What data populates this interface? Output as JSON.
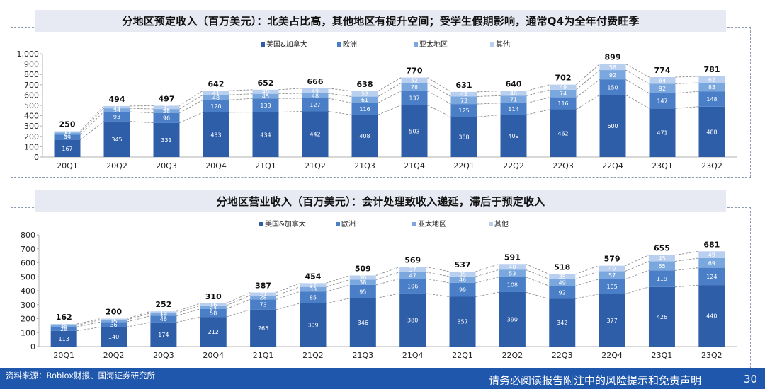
{
  "footer": {
    "source": "资料来源：Roblox财报、国海证券研究所",
    "disclaimer": "请务必阅读报告附注中的风险提示和免责声明",
    "page_number": "30"
  },
  "colors": {
    "series": [
      "#2e5ea8",
      "#4a7ec7",
      "#7aa7dd",
      "#b9cff0"
    ],
    "connector": "#8c8c8c",
    "footer": "#1f57ad"
  },
  "chart_data": [
    {
      "type": "bar",
      "stacked": true,
      "title": "分地区预定收入（百万美元）：北美占比高，其他地区有提升空间；受学生假期影响，通常Q4为全年付费旺季",
      "xlabel": "",
      "ylabel": "",
      "ylim": [
        0,
        1000
      ],
      "yticks": [
        "0",
        "100",
        "200",
        "300",
        "400",
        "500",
        "600",
        "700",
        "800",
        "900",
        "1,000"
      ],
      "legend_position": "top-center",
      "categories": [
        "20Q1",
        "20Q2",
        "20Q3",
        "20Q4",
        "21Q1",
        "21Q2",
        "21Q3",
        "21Q4",
        "22Q1",
        "22Q2",
        "22Q3",
        "22Q4",
        "23Q1",
        "23Q2"
      ],
      "series": [
        {
          "name": "美国&加拿大",
          "values": [
            167,
            345,
            331,
            433,
            434,
            442,
            408,
            503,
            388,
            409,
            462,
            600,
            471,
            488
          ]
        },
        {
          "name": "欧洲",
          "values": [
            49,
            93,
            96,
            120,
            133,
            127,
            116,
            137,
            125,
            114,
            116,
            150,
            147,
            148
          ]
        },
        {
          "name": "亚太地区",
          "values": [
            21,
            34,
            38,
            48,
            45,
            48,
            61,
            78,
            73,
            71,
            74,
            92,
            92,
            83
          ]
        },
        {
          "name": "其他",
          "values": [
            13,
            22,
            32,
            41,
            40,
            49,
            53,
            52,
            45,
            46,
            49,
            58,
            64,
            62
          ]
        }
      ],
      "totals": [
        250,
        494,
        497,
        642,
        652,
        666,
        638,
        770,
        631,
        640,
        702,
        899,
        774,
        781
      ]
    },
    {
      "type": "bar",
      "stacked": true,
      "title": "分地区营业收入（百万美元）：会计处理致收入递延，滞后于预定收入",
      "xlabel": "",
      "ylabel": "",
      "ylim": [
        0,
        800
      ],
      "yticks": [
        "0",
        "100",
        "200",
        "300",
        "400",
        "500",
        "600",
        "700",
        "800"
      ],
      "legend_position": "top-center",
      "categories": [
        "20Q1",
        "20Q2",
        "20Q3",
        "20Q4",
        "21Q1",
        "21Q2",
        "21Q3",
        "21Q4",
        "22Q1",
        "22Q2",
        "22Q3",
        "22Q4",
        "23Q1",
        "23Q2"
      ],
      "series": [
        {
          "name": "美国&加拿大",
          "values": [
            113,
            140,
            174,
            212,
            265,
            309,
            346,
            380,
            357,
            390,
            342,
            377,
            426,
            440
          ]
        },
        {
          "name": "欧洲",
          "values": [
            28,
            36,
            46,
            58,
            73,
            85,
            95,
            106,
            99,
            108,
            92,
            105,
            119,
            124
          ]
        },
        {
          "name": "亚太地区",
          "values": [
            13,
            15,
            19,
            24,
            28,
            33,
            38,
            47,
            46,
            53,
            49,
            57,
            65,
            69
          ]
        },
        {
          "name": "其他",
          "values": [
            8,
            9,
            13,
            16,
            21,
            27,
            30,
            37,
            35,
            40,
            35,
            40,
            45,
            49
          ]
        }
      ],
      "totals": [
        162,
        200,
        252,
        310,
        387,
        454,
        509,
        569,
        537,
        591,
        518,
        579,
        655,
        681
      ]
    }
  ]
}
